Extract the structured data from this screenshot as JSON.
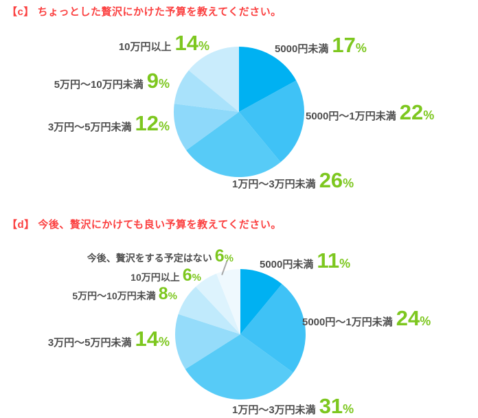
{
  "page": {
    "background_color": "#ffffff",
    "title_color": "#fb4040",
    "label_color": "#4d4d4d",
    "value_color": "#7dc71f"
  },
  "chart_data": [
    {
      "type": "pie",
      "title": "【c】 ちょっとした贅沢にかけた予算を教えてください。",
      "unit": "%",
      "categories": [
        "5000円未満",
        "5000円〜1万円未満",
        "1万円〜3万円未満",
        "3万円〜5万円未満",
        "5万円〜10万円未満",
        "10万円以上"
      ],
      "values": [
        17,
        22,
        26,
        12,
        9,
        14
      ],
      "colors": [
        "#00b1f2",
        "#3fc2f6",
        "#57cbf7",
        "#8ed9fa",
        "#a9e2fb",
        "#c9ecfc"
      ],
      "start_angle_deg": 0,
      "direction": "clockwise",
      "legend": false
    },
    {
      "type": "pie",
      "title": "【d】 今後、贅沢にかけても良い予算を教えてください。",
      "unit": "%",
      "categories": [
        "5000円未満",
        "5000円〜1万円未満",
        "1万円〜3万円未満",
        "3万円〜5万円未満",
        "5万円〜10万円未満",
        "10万円以上",
        "今後、贅沢をする予定はない"
      ],
      "values": [
        11,
        24,
        31,
        14,
        8,
        6,
        6
      ],
      "colors": [
        "#00b1f2",
        "#3fc2f6",
        "#57cbf7",
        "#95dcfa",
        "#c0eafc",
        "#ddf3fd",
        "#eff9fe"
      ],
      "start_angle_deg": 0,
      "direction": "clockwise",
      "legend": false
    }
  ]
}
